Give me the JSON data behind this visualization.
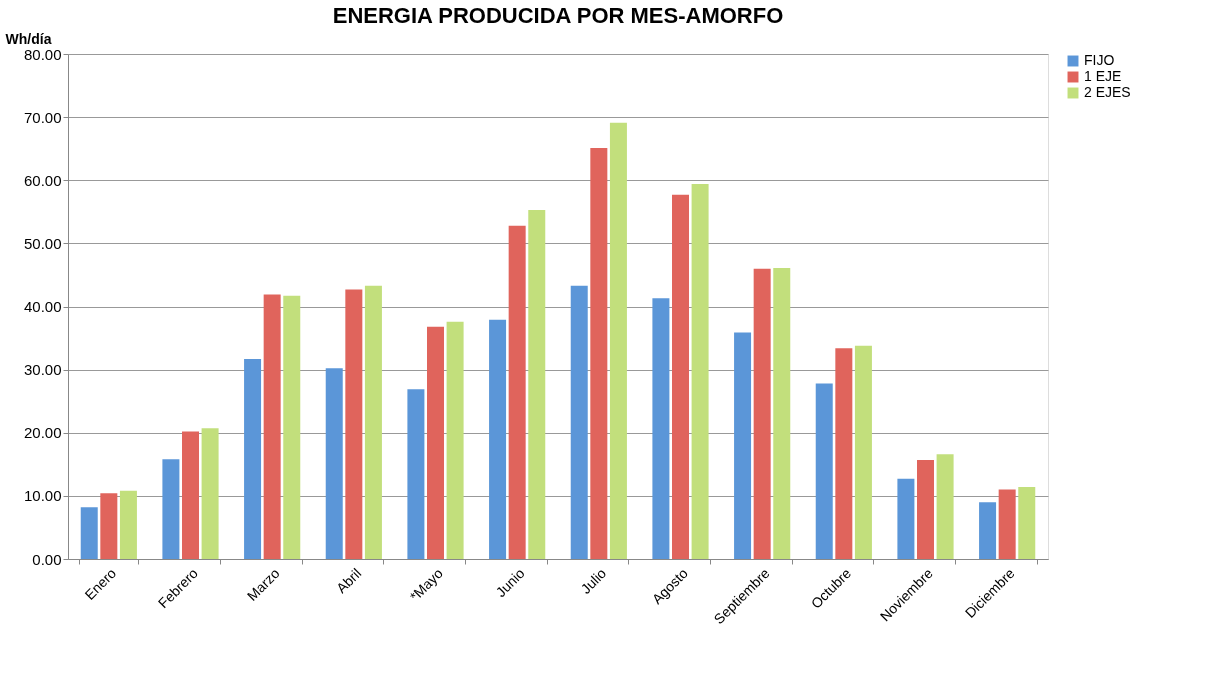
{
  "chart_data": {
    "type": "bar",
    "title": "ENERGIA PRODUCIDA POR MES-AMORFO",
    "ylabel": "Wh/día",
    "categories": [
      "Enero",
      "Febrero",
      "Marzo",
      "Abril",
      "*Mayo",
      "Junio",
      "Julio",
      "Agosto",
      "Septiembre",
      "Octubre",
      "Noviembre",
      "Diciembre"
    ],
    "series": [
      {
        "name": "FIJO",
        "color": "#5b96d8",
        "values": [
          8.2,
          15.8,
          31.7,
          30.2,
          26.9,
          37.9,
          43.3,
          41.3,
          35.9,
          27.8,
          12.7,
          9.0
        ]
      },
      {
        "name": "1 EJE",
        "color": "#e0645c",
        "values": [
          10.4,
          20.2,
          41.9,
          42.7,
          36.8,
          52.8,
          65.1,
          57.7,
          46.0,
          33.4,
          15.7,
          11.0
        ]
      },
      {
        "name": "2 EJES",
        "color": "#c2df7c",
        "values": [
          10.8,
          20.7,
          41.7,
          43.3,
          37.6,
          55.3,
          69.1,
          59.4,
          46.1,
          33.8,
          16.6,
          11.4
        ]
      }
    ],
    "ylim": [
      0,
      80
    ],
    "yticks": [
      {
        "value": 0,
        "label": "0.00"
      },
      {
        "value": 10,
        "label": "10.00"
      },
      {
        "value": 20,
        "label": "20.00"
      },
      {
        "value": 30,
        "label": "30.00"
      },
      {
        "value": 40,
        "label": "40.00"
      },
      {
        "value": 50,
        "label": "50.00"
      },
      {
        "value": 60,
        "label": "60.00"
      },
      {
        "value": 70,
        "label": "70.00"
      },
      {
        "value": 80,
        "label": "80.00"
      }
    ],
    "grid": "y",
    "legend": "right"
  }
}
